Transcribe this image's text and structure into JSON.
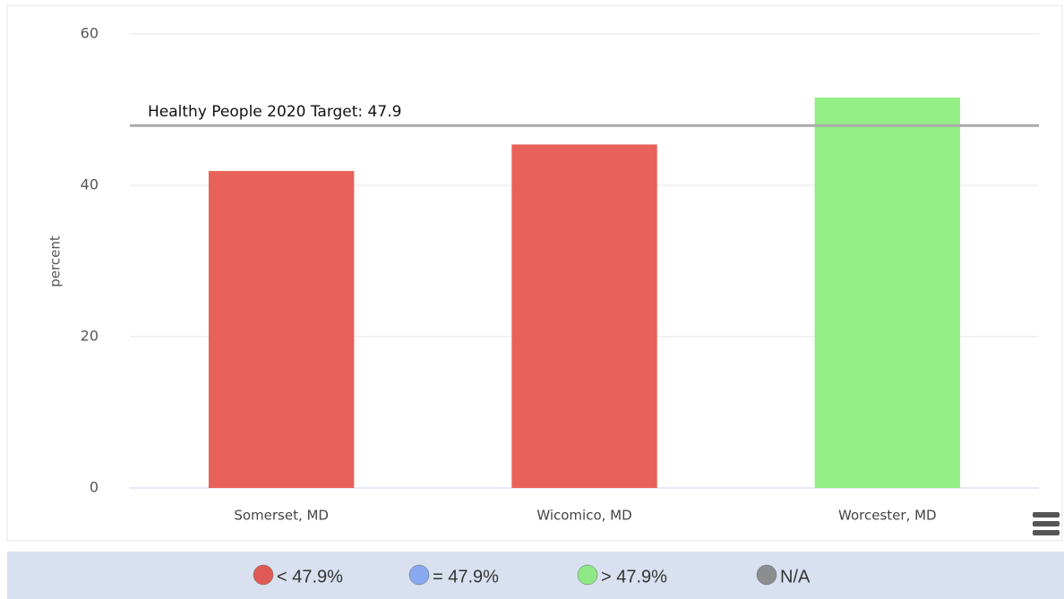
{
  "chart_data": {
    "type": "bar",
    "categories": [
      "Somerset, MD",
      "Wicomico, MD",
      "Worcester, MD"
    ],
    "values": [
      41.9,
      45.4,
      51.6
    ],
    "colors": [
      "#e8625a",
      "#e8625a",
      "#93ee85"
    ],
    "y_label": "percent",
    "ylim": [
      0,
      60
    ],
    "yticks": [
      0,
      20,
      40,
      60
    ],
    "grid": true,
    "target": {
      "label": "Healthy People 2020 Target: 47.9",
      "value": 47.9
    },
    "legend": [
      {
        "label": "< 47.9%",
        "color": "#e05a55"
      },
      {
        "label": "= 47.9%",
        "color": "#88a9ef"
      },
      {
        "label": "> 47.9%",
        "color": "#8ee886"
      },
      {
        "label": "N/A",
        "color": "#8c8d91"
      }
    ]
  }
}
